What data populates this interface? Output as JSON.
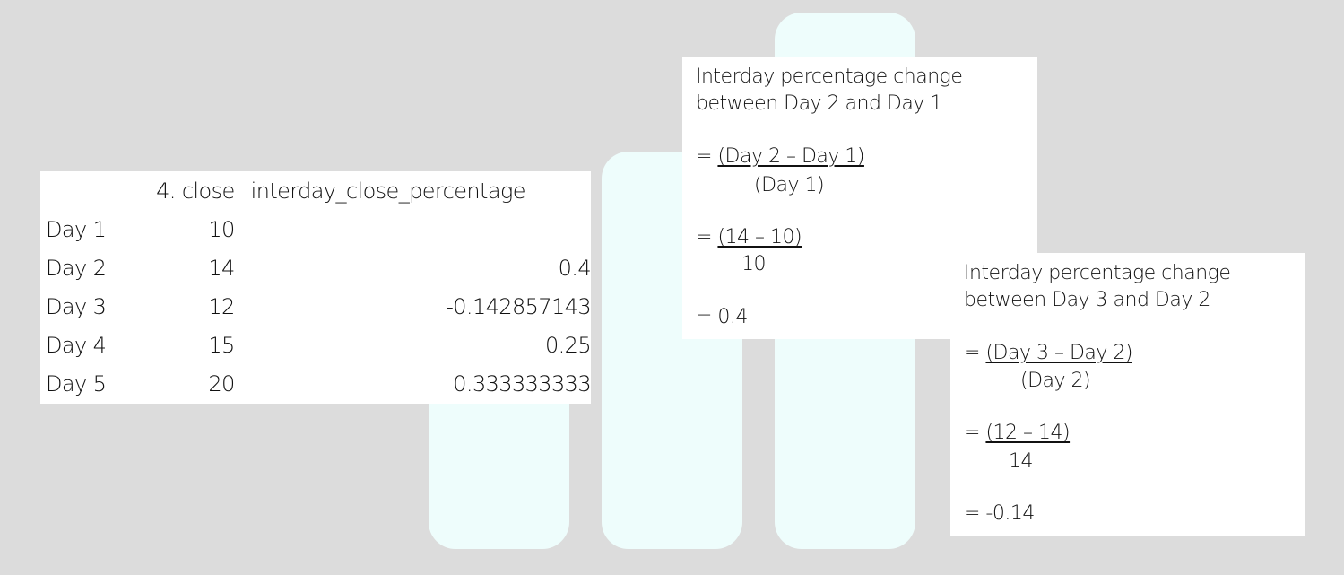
{
  "table": {
    "headers": {
      "label": "",
      "close": "4. close",
      "pct": "interday_close_percentage"
    },
    "rows": [
      {
        "label": "Day 1",
        "close": "10",
        "pct": ""
      },
      {
        "label": "Day 2",
        "close": "14",
        "pct": "0.4"
      },
      {
        "label": "Day 3",
        "close": "12",
        "pct": "-0.142857143"
      },
      {
        "label": "Day 4",
        "close": "15",
        "pct": "0.25"
      },
      {
        "label": "Day 5",
        "close": "20",
        "pct": "0.333333333"
      }
    ]
  },
  "calc1": {
    "title1": "Interday percentage change",
    "title2": "between Day 2 and Day 1",
    "eq1_prefix": "= ",
    "eq1_num": "(Day 2 – Day 1)",
    "eq1_den": "(Day 1)",
    "eq2_prefix": "= ",
    "eq2_num": "(14 – 10)",
    "eq2_den": "10",
    "result": "= 0.4"
  },
  "calc2": {
    "title1": "Interday percentage change",
    "title2": "between Day 3 and Day 2",
    "eq1_prefix": "= ",
    "eq1_num": "(Day 3 – Day 2)",
    "eq1_den": "(Day 2)",
    "eq2_prefix": "= ",
    "eq2_num": "(12 – 14)",
    "eq2_den": "14",
    "result": "= -0.14"
  },
  "colors": {
    "background": "#dcdcdc",
    "bar": "#eefdfc",
    "card": "#ffffff"
  }
}
